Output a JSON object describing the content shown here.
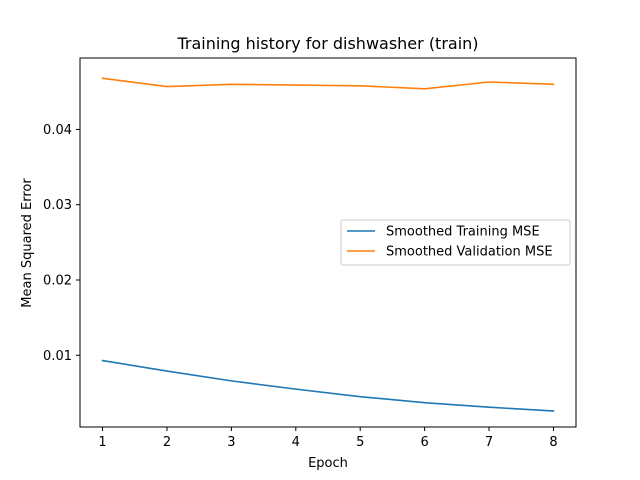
{
  "chart_data": {
    "type": "line",
    "title": "Training history for dishwasher (train)",
    "xlabel": "Epoch",
    "ylabel": "Mean Squared Error",
    "x": [
      1,
      2,
      3,
      4,
      5,
      6,
      7,
      8
    ],
    "xlim": [
      0.65,
      8.35
    ],
    "ylim": [
      0.00047,
      0.04949
    ],
    "xticks": [
      1,
      2,
      3,
      4,
      5,
      6,
      7,
      8
    ],
    "yticks": [
      0.01,
      0.02,
      0.03,
      0.04
    ],
    "ytick_labels": [
      "0.01",
      "0.02",
      "0.03",
      "0.04"
    ],
    "grid": false,
    "legend_position": "center-right",
    "series": [
      {
        "name": "Smoothed Training MSE",
        "color": "#1f77b4",
        "values": [
          0.0093,
          0.0079,
          0.0066,
          0.0055,
          0.0045,
          0.0037,
          0.0031,
          0.0026
        ]
      },
      {
        "name": "Smoothed Validation MSE",
        "color": "#ff7f0e",
        "values": [
          0.0468,
          0.0457,
          0.046,
          0.0459,
          0.0458,
          0.0454,
          0.0463,
          0.046
        ]
      }
    ]
  }
}
